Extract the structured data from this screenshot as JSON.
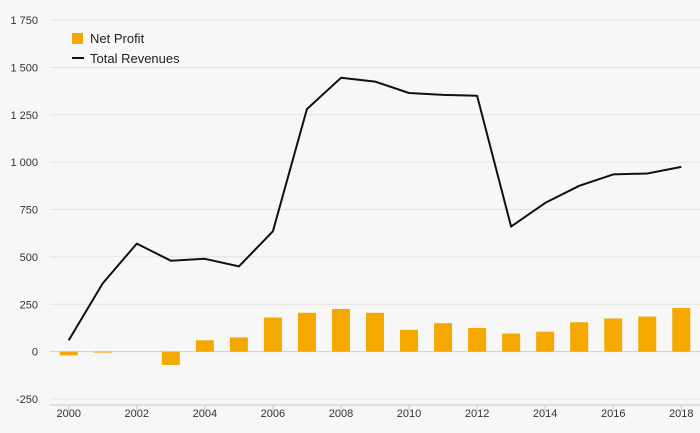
{
  "chart_data": {
    "type": "bar",
    "x": [
      2000,
      2001,
      2002,
      2003,
      2004,
      2005,
      2006,
      2007,
      2008,
      2009,
      2010,
      2011,
      2012,
      2013,
      2014,
      2015,
      2016,
      2017,
      2018
    ],
    "series": [
      {
        "name": "Net Profit",
        "type": "bar",
        "color": "#f5a800",
        "values": [
          -20,
          -5,
          null,
          -70,
          60,
          75,
          180,
          205,
          225,
          205,
          115,
          150,
          125,
          95,
          105,
          155,
          175,
          185,
          230
        ]
      },
      {
        "name": "Total Revenues",
        "type": "line",
        "color": "#111111",
        "values": [
          60,
          360,
          570,
          480,
          490,
          450,
          635,
          1280,
          1445,
          1425,
          1365,
          1355,
          1350,
          660,
          785,
          875,
          935,
          940,
          975
        ]
      }
    ],
    "yticks": [
      -250,
      0,
      250,
      500,
      750,
      1000,
      1250,
      1500,
      1750
    ],
    "ytick_labels": [
      "-250",
      "0",
      "250",
      "500",
      "750",
      "1 000",
      "1 250",
      "1 500",
      "1 750"
    ],
    "xticks": [
      2000,
      2002,
      2004,
      2006,
      2008,
      2010,
      2012,
      2014,
      2016,
      2018
    ],
    "ylim": [
      -250,
      1750
    ],
    "xlim": [
      1999.45,
      2018.55
    ],
    "grid": true,
    "legend_position": "top-left",
    "title": "",
    "xlabel": "",
    "ylabel": ""
  },
  "legend": {
    "bar_label": "Net Profit",
    "line_label": "Total Revenues"
  }
}
